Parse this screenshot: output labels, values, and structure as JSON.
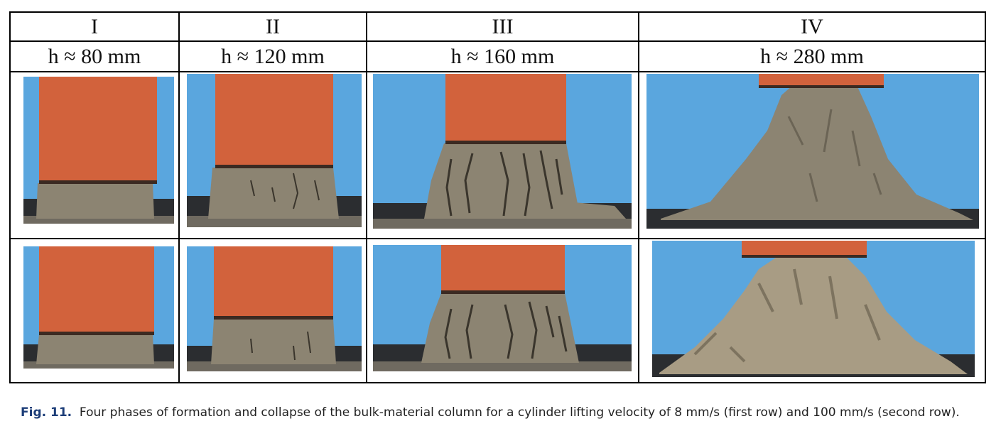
{
  "phases": [
    {
      "roman": "I",
      "height": "h ≈ 80 mm"
    },
    {
      "roman": "II",
      "height": "h ≈ 120 mm"
    },
    {
      "roman": "III",
      "height": "h ≈ 160 mm"
    },
    {
      "roman": "IV",
      "height": "h ≈ 280 mm"
    }
  ],
  "caption": {
    "label": "Fig. 11.",
    "text": "Four phases of formation and collapse of the bulk-material column for a cylinder lifting velocity of 8 mm/s (first row) and 100 mm/s (second row)."
  },
  "colors": {
    "sky": "#5aa6de",
    "cylinder": "#d2623c",
    "sand": "#8c8472",
    "crack": "#3a352c",
    "base": "#2b2d30"
  }
}
